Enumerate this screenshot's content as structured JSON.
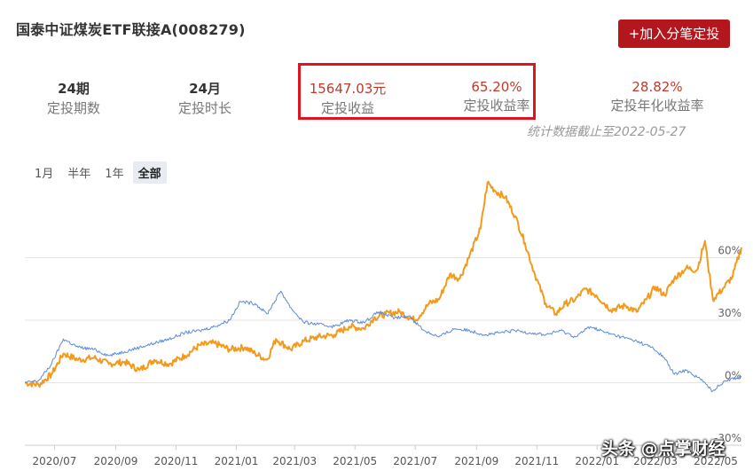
{
  "header": {
    "title": "国泰中证煤炭ETF联接A(008279)",
    "add_button": "+加入分笔定投"
  },
  "stats": {
    "periods_value": "24期",
    "periods_label": "定投期数",
    "duration_value": "24月",
    "duration_label": "定投时长",
    "profit_value": "15647.03元",
    "profit_label": "定投收益",
    "return_value": "65.20%",
    "return_label": "定投收益率",
    "annual_value": "28.82%",
    "annual_label": "定投年化收益率",
    "as_of": "统计数据截止至2022-05-27"
  },
  "range_tabs": [
    "1月",
    "半年",
    "1年",
    "全部"
  ],
  "active_tab": "全部",
  "watermark": "头条 @点掌财经",
  "colors": {
    "accent": "#b3161d",
    "highlight": "#e0141e",
    "orange_series": "#f39a1c",
    "blue_series": "#5b8bd6"
  },
  "chart_data": {
    "type": "line",
    "x_range": [
      "2020-06-01",
      "2022-05-27"
    ],
    "xtick_labels": [
      "2020/07",
      "2020/09",
      "2020/11",
      "2021/01",
      "2021/03",
      "2021/05",
      "2021/07",
      "2021/09",
      "2021/11",
      "2022/01",
      "2022/03",
      "2022/05"
    ],
    "ytick_labels": [
      "60%",
      "30%",
      "0%",
      "-30%"
    ],
    "ytick_values": [
      60,
      30,
      0,
      -30
    ],
    "ylim": [
      -30,
      90
    ],
    "grid": true,
    "series": [
      {
        "color": "#f39a1c",
        "points": [
          [
            "2020-06-01",
            0
          ],
          [
            "2020-06-15",
            -1
          ],
          [
            "2020-06-28",
            4
          ],
          [
            "2020-07-10",
            14
          ],
          [
            "2020-07-25",
            11
          ],
          [
            "2020-08-10",
            12
          ],
          [
            "2020-08-25",
            9
          ],
          [
            "2020-09-10",
            10
          ],
          [
            "2020-09-25",
            6
          ],
          [
            "2020-10-10",
            11
          ],
          [
            "2020-10-25",
            9
          ],
          [
            "2020-11-10",
            13
          ],
          [
            "2020-11-25",
            18
          ],
          [
            "2020-12-10",
            19
          ],
          [
            "2020-12-25",
            16
          ],
          [
            "2021-01-10",
            17
          ],
          [
            "2021-01-20",
            14
          ],
          [
            "2021-02-01",
            11
          ],
          [
            "2021-02-10",
            21
          ],
          [
            "2021-02-25",
            16
          ],
          [
            "2021-03-10",
            20
          ],
          [
            "2021-03-25",
            22
          ],
          [
            "2021-04-10",
            23
          ],
          [
            "2021-04-25",
            27
          ],
          [
            "2021-05-10",
            26
          ],
          [
            "2021-05-20",
            31
          ],
          [
            "2021-06-01",
            33
          ],
          [
            "2021-06-15",
            34
          ],
          [
            "2021-07-01",
            30
          ],
          [
            "2021-07-15",
            38
          ],
          [
            "2021-07-25",
            40
          ],
          [
            "2021-08-05",
            52
          ],
          [
            "2021-08-15",
            50
          ],
          [
            "2021-08-25",
            61
          ],
          [
            "2021-09-05",
            74
          ],
          [
            "2021-09-12",
            96
          ],
          [
            "2021-09-20",
            92
          ],
          [
            "2021-09-30",
            89
          ],
          [
            "2021-10-10",
            80
          ],
          [
            "2021-10-20",
            67
          ],
          [
            "2021-10-30",
            52
          ],
          [
            "2021-11-10",
            38
          ],
          [
            "2021-11-20",
            33
          ],
          [
            "2021-11-30",
            38
          ],
          [
            "2021-12-10",
            40
          ],
          [
            "2021-12-20",
            45
          ],
          [
            "2021-12-31",
            42
          ],
          [
            "2022-01-15",
            35
          ],
          [
            "2022-01-30",
            37
          ],
          [
            "2022-02-10",
            34
          ],
          [
            "2022-02-20",
            40
          ],
          [
            "2022-03-01",
            46
          ],
          [
            "2022-03-10",
            42
          ],
          [
            "2022-03-20",
            50
          ],
          [
            "2022-04-01",
            55
          ],
          [
            "2022-04-12",
            54
          ],
          [
            "2022-04-20",
            68
          ],
          [
            "2022-04-28",
            40
          ],
          [
            "2022-05-08",
            45
          ],
          [
            "2022-05-18",
            51
          ],
          [
            "2022-05-27",
            65
          ]
        ]
      },
      {
        "color": "#5b8bd6",
        "points": [
          [
            "2020-06-01",
            0
          ],
          [
            "2020-06-15",
            1
          ],
          [
            "2020-06-28",
            9
          ],
          [
            "2020-07-10",
            21
          ],
          [
            "2020-07-25",
            17
          ],
          [
            "2020-08-10",
            16
          ],
          [
            "2020-08-25",
            13
          ],
          [
            "2020-09-10",
            15
          ],
          [
            "2020-09-25",
            17
          ],
          [
            "2020-10-10",
            19
          ],
          [
            "2020-10-25",
            21
          ],
          [
            "2020-11-10",
            24
          ],
          [
            "2020-11-25",
            25
          ],
          [
            "2020-12-10",
            27
          ],
          [
            "2020-12-25",
            30
          ],
          [
            "2021-01-05",
            39
          ],
          [
            "2021-01-20",
            38
          ],
          [
            "2021-02-01",
            33
          ],
          [
            "2021-02-15",
            44
          ],
          [
            "2021-02-25",
            36
          ],
          [
            "2021-03-10",
            29
          ],
          [
            "2021-03-25",
            28
          ],
          [
            "2021-04-10",
            27
          ],
          [
            "2021-04-25",
            30
          ],
          [
            "2021-05-10",
            29
          ],
          [
            "2021-05-25",
            34
          ],
          [
            "2021-06-10",
            31
          ],
          [
            "2021-06-25",
            32
          ],
          [
            "2021-07-10",
            25
          ],
          [
            "2021-07-25",
            22
          ],
          [
            "2021-08-10",
            26
          ],
          [
            "2021-08-25",
            25
          ],
          [
            "2021-09-10",
            23
          ],
          [
            "2021-09-25",
            24
          ],
          [
            "2021-10-10",
            25
          ],
          [
            "2021-10-25",
            24
          ],
          [
            "2021-11-10",
            23
          ],
          [
            "2021-11-25",
            25
          ],
          [
            "2021-12-10",
            22
          ],
          [
            "2021-12-25",
            27
          ],
          [
            "2022-01-10",
            24
          ],
          [
            "2022-01-25",
            22
          ],
          [
            "2022-02-10",
            20
          ],
          [
            "2022-02-25",
            17
          ],
          [
            "2022-03-10",
            12
          ],
          [
            "2022-03-20",
            4
          ],
          [
            "2022-04-01",
            6
          ],
          [
            "2022-04-15",
            2
          ],
          [
            "2022-04-28",
            -4
          ],
          [
            "2022-05-10",
            1
          ],
          [
            "2022-05-27",
            3
          ]
        ]
      }
    ]
  }
}
